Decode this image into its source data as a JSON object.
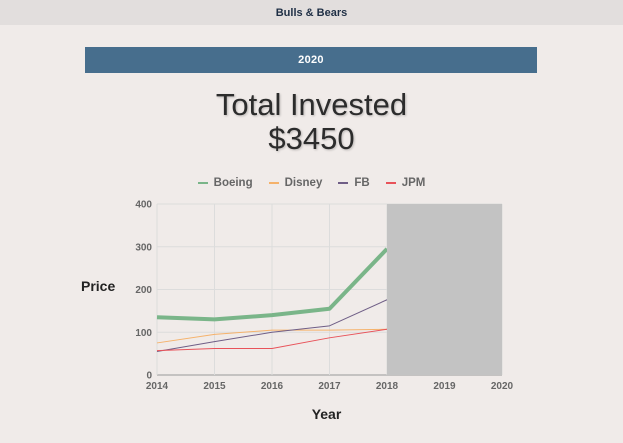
{
  "header": {
    "title": "Bulls & Bears"
  },
  "year_bar": {
    "label": "2020"
  },
  "summary": {
    "line1": "Total Invested",
    "line2": "$3450"
  },
  "colors": {
    "Boeing": "#7ab589",
    "Disney": "#f5b26b",
    "FB": "#6f5e86",
    "JPM": "#e8535a",
    "mask": "#c3c3c3",
    "year_bar": "#476e8d"
  },
  "chart_data": {
    "type": "line",
    "xlabel": "Year",
    "ylabel": "Price",
    "x": [
      2014,
      2015,
      2016,
      2017,
      2018
    ],
    "x_ticks": [
      "2014",
      "2015",
      "2016",
      "2017",
      "2018",
      "2019",
      "2020"
    ],
    "y_ticks": [
      "0",
      "100",
      "200",
      "300",
      "400"
    ],
    "xlim": [
      2014,
      2020
    ],
    "ylim": [
      0,
      400
    ],
    "grid": true,
    "legend": "top",
    "masked_range": [
      2018,
      2020
    ],
    "series": [
      {
        "name": "Boeing",
        "values": [
          135,
          130,
          140,
          155,
          295
        ]
      },
      {
        "name": "Disney",
        "values": [
          75,
          95,
          105,
          105,
          107
        ]
      },
      {
        "name": "FB",
        "values": [
          55,
          78,
          100,
          115,
          176
        ]
      },
      {
        "name": "JPM",
        "values": [
          57,
          62,
          62,
          87,
          107
        ]
      }
    ]
  }
}
